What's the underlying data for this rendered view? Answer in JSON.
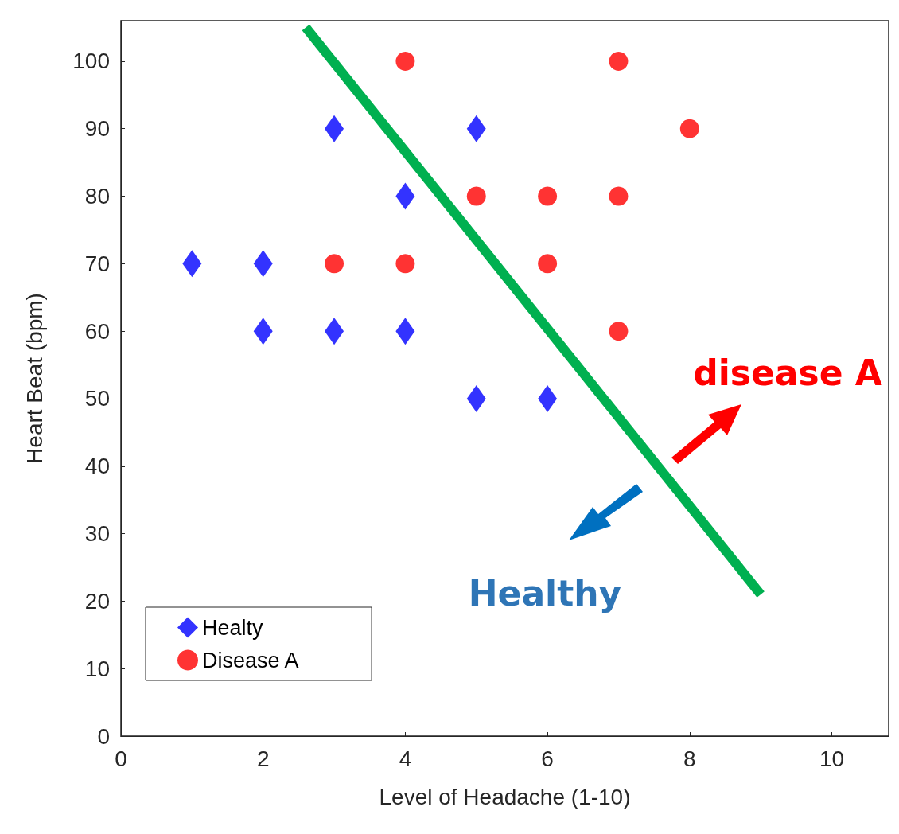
{
  "chart_data": {
    "type": "scatter",
    "xlabel": "Level of Headache (1-10)",
    "ylabel": "Heart Beat (bpm)",
    "xlim": [
      0,
      10.8
    ],
    "xticks": [
      0,
      2,
      4,
      6,
      8,
      10
    ],
    "ylim": [
      0,
      106
    ],
    "yticks": [
      0,
      10,
      20,
      30,
      40,
      50,
      60,
      70,
      80,
      90,
      100
    ],
    "grid": false,
    "legend": "bottom left",
    "annotations": [
      "disease A",
      "Healthy"
    ],
    "series": [
      {
        "name": "Healty",
        "color": "#0000ff",
        "marker": "diamond",
        "x": [
          1,
          2,
          2,
          3,
          3,
          4,
          4,
          5,
          5,
          6
        ],
        "values": [
          70,
          70,
          60,
          90,
          60,
          80,
          60,
          90,
          50,
          50
        ]
      },
      {
        "name": "Disease A",
        "color": "#ff0000",
        "marker": "circle",
        "x": [
          4,
          7,
          8,
          5,
          6,
          7,
          3,
          4,
          6,
          7
        ],
        "values": [
          100,
          100,
          90,
          80,
          80,
          80,
          70,
          70,
          70,
          60
        ]
      },
      {
        "type": "line",
        "color": "#00b050",
        "marker": "none",
        "x": [
          2.6,
          9
        ],
        "values": [
          105,
          21
        ]
      }
    ]
  }
}
